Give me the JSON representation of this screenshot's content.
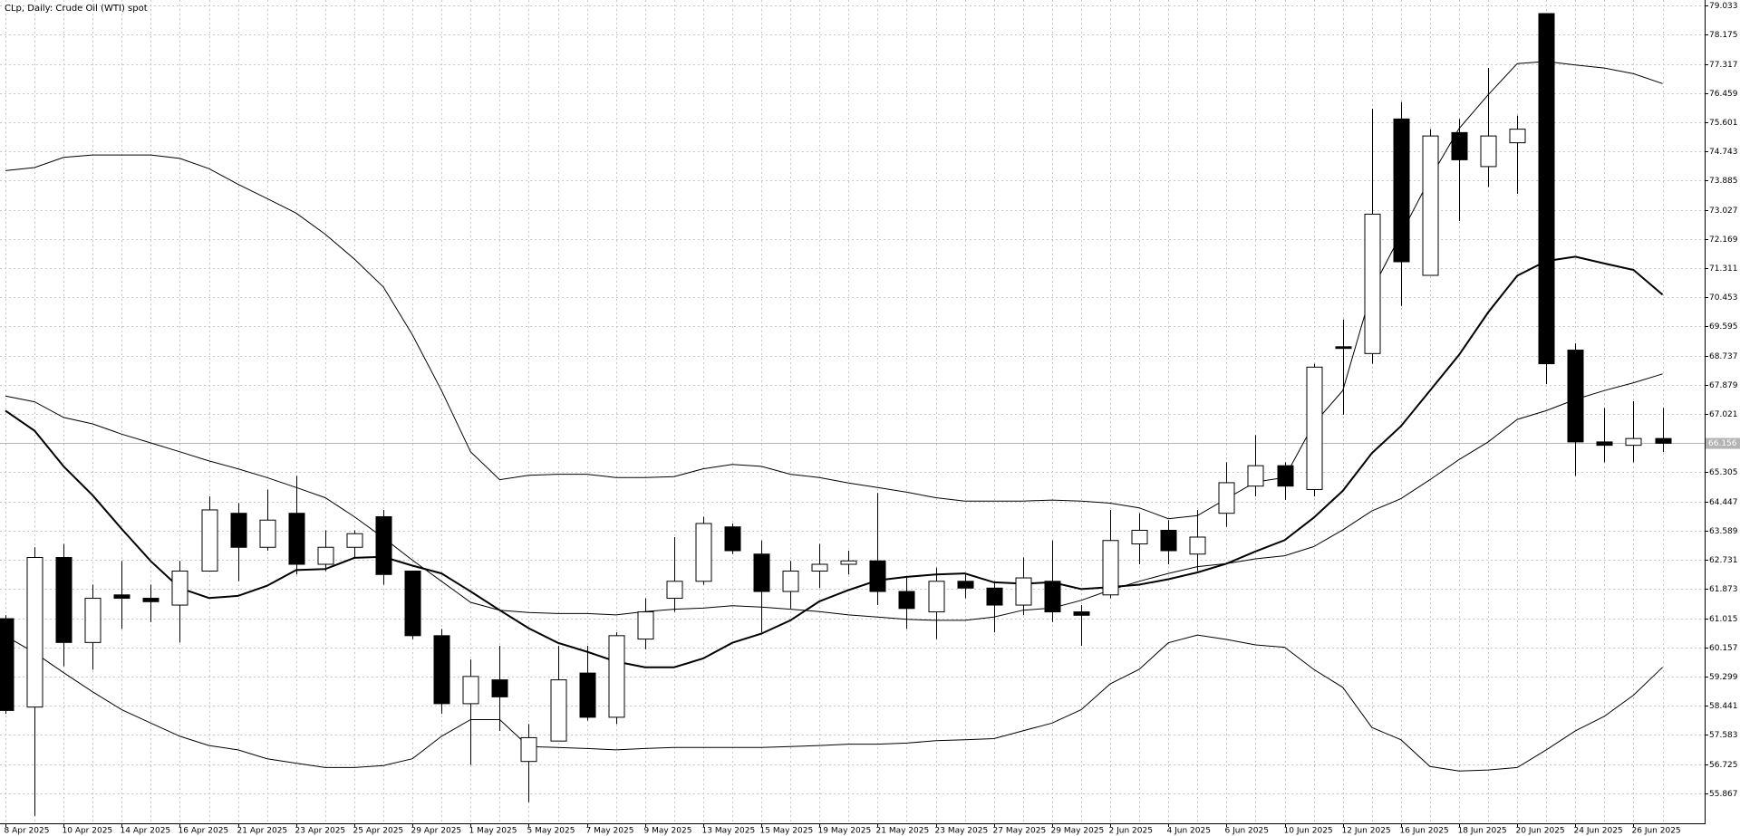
{
  "chart_data": {
    "type": "candlestick",
    "title": "CLp, Daily:  Crude Oil (WTI) spot",
    "categories": [
      "8 Apr 2025",
      null,
      "10 Apr 2025",
      null,
      "14 Apr 2025",
      null,
      "16 Apr 2025",
      null,
      "21 Apr 2025",
      null,
      "23 Apr 2025",
      null,
      "25 Apr 2025",
      null,
      "29 Apr 2025",
      null,
      "1 May 2025",
      null,
      "5 May 2025",
      null,
      "7 May 2025",
      null,
      "9 May 2025",
      null,
      "13 May 2025",
      null,
      "15 May 2025",
      null,
      "19 May 2025",
      null,
      "21 May 2025",
      null,
      "23 May 2025",
      null,
      "27 May 2025",
      null,
      "29 May 2025",
      null,
      "2 Jun 2025",
      null,
      "4 Jun 2025",
      null,
      "6 Jun 2025",
      null,
      "10 Jun 2025",
      null,
      "12 Jun 2025",
      null,
      "16 Jun 2025",
      null,
      "18 Jun 2025",
      null,
      "20 Jun 2025",
      null,
      "24 Jun 2025",
      null,
      "26 Jun 2025",
      null
    ],
    "open": [
      61.0,
      58.4,
      62.8,
      60.3,
      61.7,
      61.6,
      61.4,
      62.4,
      64.1,
      63.1,
      64.1,
      62.6,
      63.1,
      64.0,
      62.4,
      60.5,
      58.5,
      59.2,
      56.8,
      57.4,
      59.4,
      58.1,
      60.4,
      61.6,
      62.1,
      63.7,
      62.9,
      61.8,
      62.4,
      62.6,
      62.7,
      61.8,
      61.2,
      62.1,
      61.9,
      61.4,
      62.1,
      61.2,
      61.7,
      63.2,
      63.6,
      62.9,
      64.1,
      64.9,
      65.5,
      64.8,
      69.0,
      68.8,
      75.7,
      71.1,
      75.3,
      74.3,
      75.0,
      78.8,
      68.9,
      66.2,
      66.1,
      66.3
    ],
    "high": [
      61.1,
      63.1,
      63.2,
      62.0,
      62.7,
      62.0,
      62.7,
      64.6,
      64.4,
      64.8,
      65.2,
      63.6,
      63.6,
      64.2,
      62.4,
      60.7,
      59.8,
      60.2,
      57.9,
      60.2,
      60.2,
      60.6,
      61.6,
      63.4,
      64.0,
      63.8,
      63.3,
      62.7,
      63.2,
      63.0,
      64.7,
      62.2,
      62.5,
      62.3,
      62.1,
      62.8,
      63.3,
      61.4,
      64.2,
      64.1,
      63.9,
      64.2,
      65.6,
      66.4,
      65.6,
      68.5,
      69.8,
      76.0,
      76.2,
      75.4,
      75.7,
      77.2,
      75.8,
      78.8,
      69.1,
      67.2,
      67.4,
      67.2
    ],
    "low": [
      58.2,
      55.2,
      59.6,
      59.5,
      60.7,
      60.9,
      60.3,
      62.4,
      62.1,
      63.0,
      62.3,
      62.4,
      62.8,
      62.0,
      60.4,
      58.2,
      56.7,
      57.7,
      55.6,
      57.4,
      58.0,
      57.9,
      60.1,
      61.2,
      62.0,
      62.9,
      60.6,
      61.3,
      61.9,
      62.3,
      61.4,
      60.7,
      60.4,
      61.6,
      60.6,
      61.1,
      60.9,
      60.2,
      61.6,
      62.6,
      62.6,
      62.4,
      63.7,
      64.6,
      64.5,
      64.6,
      67.0,
      68.5,
      70.2,
      71.1,
      72.7,
      73.7,
      73.5,
      67.9,
      65.2,
      65.6,
      65.6,
      65.9
    ],
    "close": [
      58.3,
      62.8,
      60.3,
      61.6,
      61.6,
      61.5,
      62.4,
      64.2,
      63.1,
      63.9,
      62.6,
      63.1,
      63.5,
      62.3,
      60.5,
      58.5,
      59.3,
      58.7,
      57.5,
      59.2,
      58.1,
      60.5,
      61.2,
      62.1,
      63.8,
      63.0,
      61.8,
      62.4,
      62.6,
      62.7,
      61.8,
      61.3,
      62.1,
      61.9,
      61.4,
      62.2,
      61.2,
      61.1,
      63.3,
      63.6,
      63.0,
      63.4,
      65.0,
      65.5,
      64.9,
      68.4,
      68.95,
      72.9,
      71.5,
      75.2,
      74.5,
      75.2,
      75.4,
      68.5,
      66.2,
      66.1,
      66.3,
      66.16
    ],
    "up_color": "#ffffff",
    "down_color": "#000000",
    "lines": [
      {
        "color": "#000000",
        "width": 1,
        "values": [
          74.18,
          74.27,
          74.57,
          74.64,
          74.64,
          74.64,
          74.54,
          74.24,
          73.78,
          73.36,
          72.93,
          72.31,
          71.58,
          70.76,
          69.35,
          67.71,
          65.91,
          65.09,
          65.22,
          65.25,
          65.25,
          65.15,
          65.15,
          65.18,
          65.41,
          65.54,
          65.48,
          65.25,
          65.15,
          64.99,
          64.86,
          64.72,
          64.56,
          64.46,
          64.46,
          64.46,
          64.49,
          64.46,
          64.4,
          64.26,
          63.94,
          64.03,
          64.53,
          65.02,
          65.15,
          66.73,
          67.71,
          70.66,
          72.31,
          73.95,
          75.42,
          76.41,
          77.33,
          77.39,
          77.29,
          77.2,
          77.03,
          76.74
        ]
      },
      {
        "color": "#000000",
        "width": 1,
        "values": [
          67.55,
          67.38,
          66.92,
          66.73,
          66.43,
          66.17,
          65.91,
          65.64,
          65.41,
          65.15,
          64.86,
          64.56,
          64.0,
          63.38,
          62.72,
          62.1,
          61.48,
          61.25,
          61.18,
          61.15,
          61.15,
          61.11,
          61.21,
          61.28,
          61.31,
          61.38,
          61.34,
          61.28,
          61.21,
          61.11,
          61.05,
          60.98,
          60.95,
          60.95,
          61.05,
          61.25,
          61.31,
          61.54,
          61.84,
          62.1,
          62.33,
          62.53,
          62.62,
          62.76,
          62.85,
          63.12,
          63.61,
          64.17,
          64.53,
          65.09,
          65.68,
          66.2,
          66.86,
          67.12,
          67.45,
          67.71,
          67.94,
          68.2
        ]
      },
      {
        "color": "#000000",
        "width": 1,
        "values": [
          60.49,
          60.0,
          59.41,
          58.85,
          58.32,
          57.93,
          57.54,
          57.27,
          57.14,
          56.88,
          56.75,
          56.62,
          56.62,
          56.68,
          56.88,
          57.54,
          58.03,
          58.03,
          57.24,
          57.21,
          57.18,
          57.14,
          57.18,
          57.21,
          57.21,
          57.21,
          57.21,
          57.24,
          57.27,
          57.31,
          57.31,
          57.34,
          57.41,
          57.44,
          57.47,
          57.7,
          57.93,
          58.32,
          59.08,
          59.51,
          60.29,
          60.52,
          60.39,
          60.23,
          60.16,
          59.51,
          58.98,
          57.8,
          57.44,
          56.65,
          56.52,
          56.55,
          56.62,
          57.14,
          57.7,
          58.13,
          58.75,
          59.57
        ]
      },
      {
        "color": "#000000",
        "width": 2,
        "values": [
          67.12,
          66.53,
          65.48,
          64.63,
          63.64,
          62.69,
          61.9,
          61.61,
          61.67,
          61.97,
          62.43,
          62.46,
          62.79,
          62.82,
          62.56,
          62.33,
          61.8,
          61.25,
          60.72,
          60.29,
          60.03,
          59.74,
          59.57,
          59.57,
          59.83,
          60.29,
          60.56,
          60.95,
          61.51,
          61.84,
          62.13,
          62.23,
          62.3,
          62.33,
          62.07,
          62.03,
          62.07,
          61.87,
          61.93,
          62.0,
          62.16,
          62.36,
          62.62,
          62.98,
          63.31,
          63.97,
          64.76,
          65.87,
          66.66,
          67.71,
          68.76,
          70.01,
          71.09,
          71.52,
          71.65,
          71.45,
          71.26,
          70.53
        ]
      }
    ],
    "last_price": 66.156,
    "ylim": [
      54.98,
      79.2
    ],
    "yticks": [
      55.867,
      56.725,
      57.583,
      58.441,
      59.299,
      60.157,
      61.015,
      61.873,
      62.731,
      63.589,
      64.447,
      65.305,
      67.021,
      67.879,
      68.737,
      69.595,
      70.453,
      71.311,
      72.169,
      73.027,
      73.885,
      74.743,
      75.601,
      76.459,
      77.317,
      78.175,
      79.033
    ],
    "grid": true
  }
}
